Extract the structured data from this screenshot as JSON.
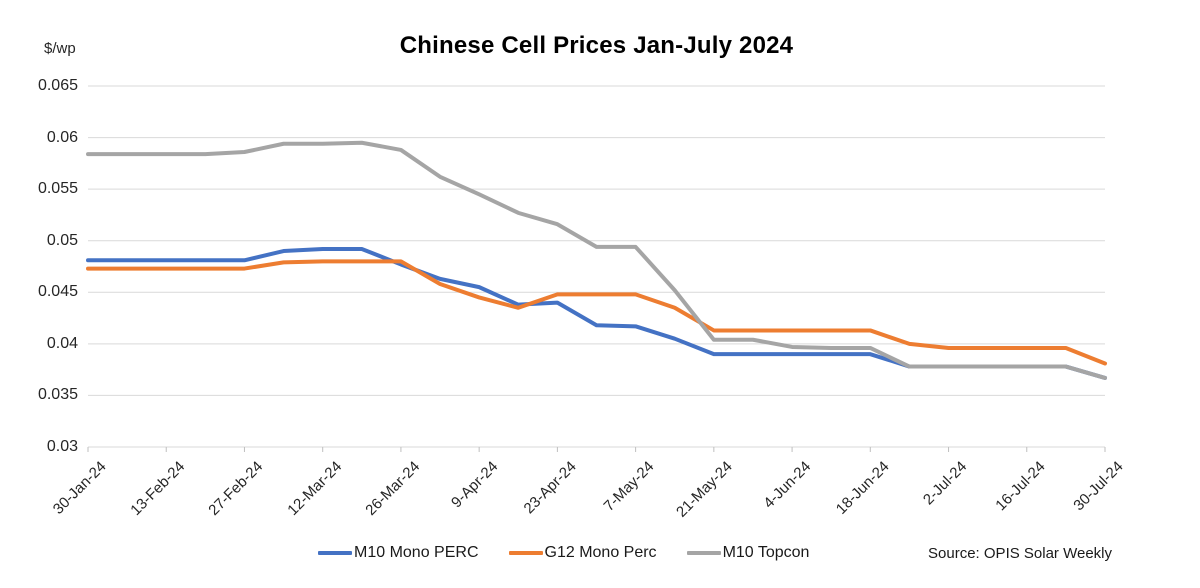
{
  "chart_data": {
    "type": "line",
    "title": "Chinese Cell Prices Jan-July 2024",
    "y_axis_label": "$/wp",
    "xlabel": "",
    "ylabel": "$/wp",
    "ylim": [
      0.03,
      0.065
    ],
    "grid": true,
    "legend_position": "bottom",
    "source": "Source: OPIS Solar Weekly",
    "y_tick_labels": [
      "0.065",
      "0.06",
      "0.055",
      "0.05",
      "0.045",
      "0.04",
      "0.035",
      "0.03"
    ],
    "y_ticks": [
      0.065,
      0.06,
      0.055,
      0.05,
      0.045,
      0.04,
      0.035,
      0.03
    ],
    "x": [
      "30-Jan-24",
      "6-Feb-24",
      "13-Feb-24",
      "20-Feb-24",
      "27-Feb-24",
      "5-Mar-24",
      "12-Mar-24",
      "19-Mar-24",
      "26-Mar-24",
      "2-Apr-24",
      "9-Apr-24",
      "16-Apr-24",
      "23-Apr-24",
      "30-Apr-24",
      "7-May-24",
      "14-May-24",
      "21-May-24",
      "28-May-24",
      "4-Jun-24",
      "11-Jun-24",
      "18-Jun-24",
      "25-Jun-24",
      "2-Jul-24",
      "9-Jul-24",
      "16-Jul-24",
      "23-Jul-24",
      "30-Jul-24"
    ],
    "x_tick_labels": [
      "30-Jan-24",
      "13-Feb-24",
      "27-Feb-24",
      "12-Mar-24",
      "26-Mar-24",
      "9-Apr-24",
      "23-Apr-24",
      "7-May-24",
      "21-May-24",
      "4-Jun-24",
      "18-Jun-24",
      "2-Jul-24",
      "16-Jul-24",
      "30-Jul-24"
    ],
    "x_tick_step": 2,
    "series": [
      {
        "name": "M10 Mono PERC",
        "color": "#4472C4",
        "values": [
          0.0481,
          0.0481,
          0.0481,
          0.0481,
          0.0481,
          0.049,
          0.0492,
          0.0492,
          0.0477,
          0.0463,
          0.0455,
          0.0438,
          0.044,
          0.0418,
          0.0417,
          0.0405,
          0.039,
          0.039,
          0.039,
          0.039,
          0.039,
          0.0378,
          0.0378,
          0.0378,
          0.0378,
          0.0378,
          0.0367
        ]
      },
      {
        "name": "G12 Mono Perc",
        "color": "#ED7D31",
        "values": [
          0.0473,
          0.0473,
          0.0473,
          0.0473,
          0.0473,
          0.0479,
          0.048,
          0.048,
          0.048,
          0.0458,
          0.0445,
          0.0435,
          0.0448,
          0.0448,
          0.0448,
          0.0435,
          0.0413,
          0.0413,
          0.0413,
          0.0413,
          0.0413,
          0.04,
          0.0396,
          0.0396,
          0.0396,
          0.0396,
          0.0381
        ]
      },
      {
        "name": "M10 Topcon",
        "color": "#A5A5A5",
        "values": [
          0.0584,
          0.0584,
          0.0584,
          0.0584,
          0.0586,
          0.0594,
          0.0594,
          0.0595,
          0.0588,
          0.0562,
          0.0545,
          0.0527,
          0.0516,
          0.0494,
          0.0494,
          0.0452,
          0.0404,
          0.0404,
          0.0397,
          0.0396,
          0.0396,
          0.0378,
          0.0378,
          0.0378,
          0.0378,
          0.0378,
          0.0367
        ]
      }
    ],
    "style": {
      "gridline_color": "#D9D9D9",
      "tick_color": "#BFBFBF",
      "line_width": 4
    }
  }
}
